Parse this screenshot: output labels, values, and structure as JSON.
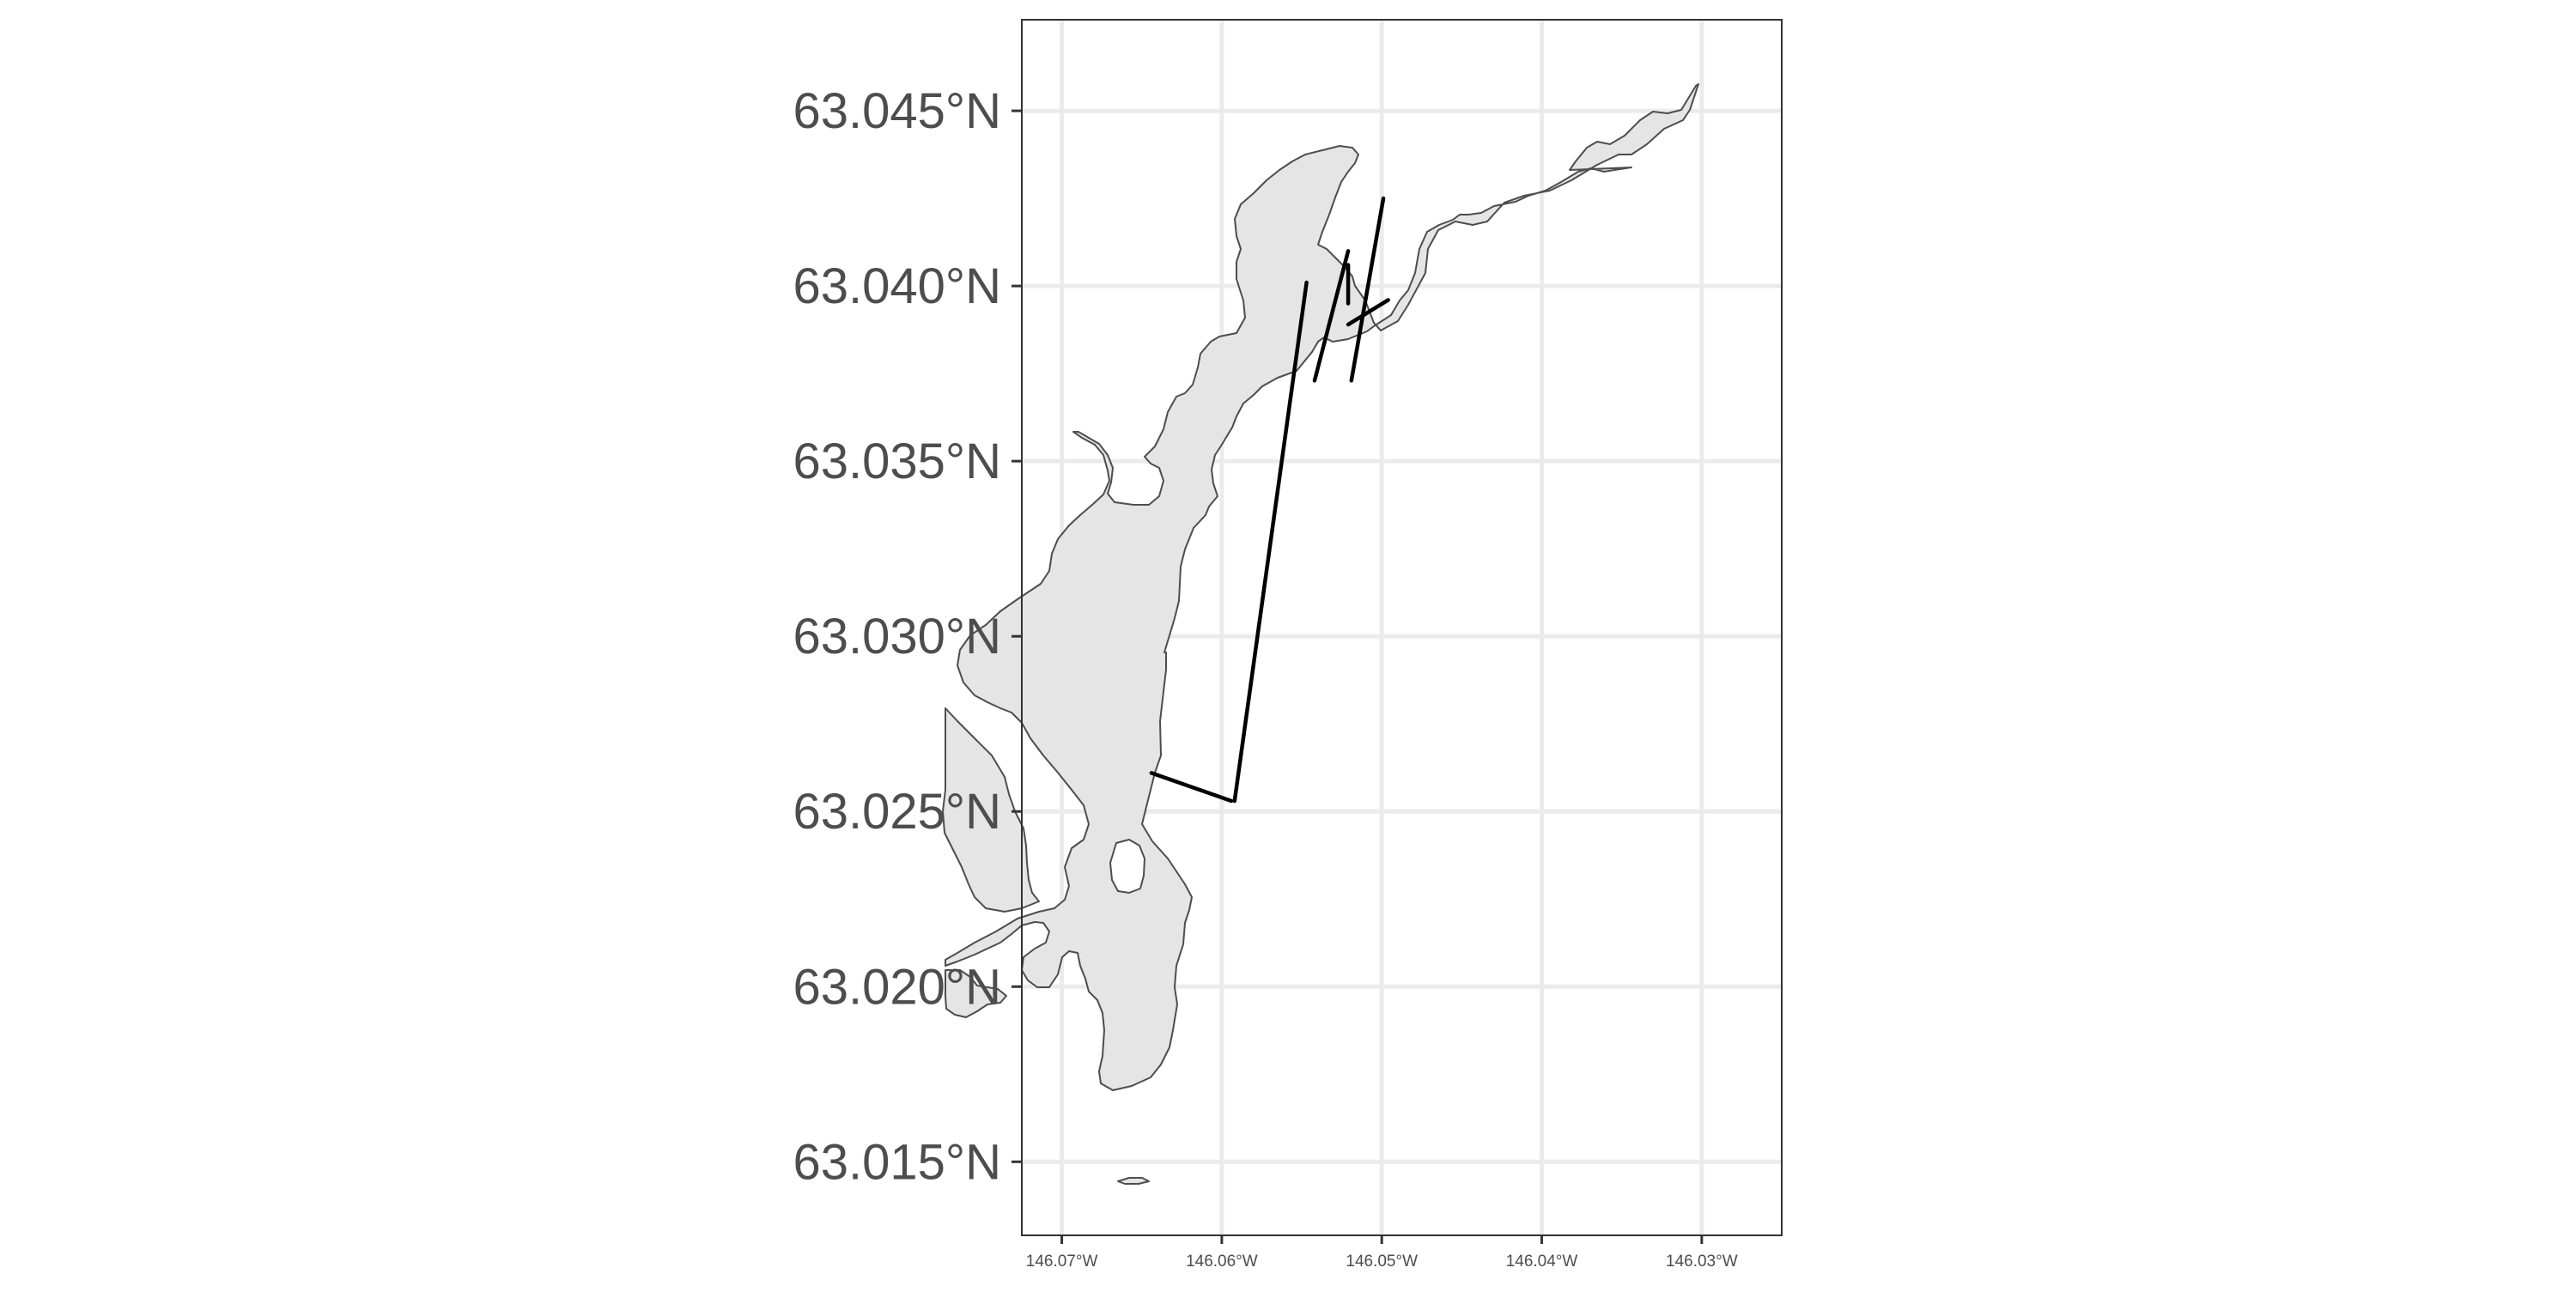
{
  "map": {
    "y_axis": {
      "ticks": [
        {
          "value": 63.045,
          "label": "63.045°N"
        },
        {
          "value": 63.04,
          "label": "63.040°N"
        },
        {
          "value": 63.035,
          "label": "63.035°N"
        },
        {
          "value": 63.03,
          "label": "63.030°N"
        },
        {
          "value": 63.025,
          "label": "63.025°N"
        },
        {
          "value": 63.02,
          "label": "63.020°N"
        },
        {
          "value": 63.015,
          "label": "63.015°N"
        }
      ],
      "range": [
        63.0129,
        63.0476
      ]
    },
    "x_axis": {
      "ticks": [
        {
          "value": -146.07,
          "label": "146.07°W"
        },
        {
          "value": -146.06,
          "label": "146.06°W"
        },
        {
          "value": -146.05,
          "label": "146.05°W"
        },
        {
          "value": -146.04,
          "label": "146.04°W"
        },
        {
          "value": -146.03,
          "label": "146.03°W"
        }
      ],
      "range": [
        -146.0725,
        -146.025
      ]
    },
    "colors": {
      "lake_fill": "#e5e5e5",
      "lake_outline": "#4d4d4d",
      "transect": "#000000",
      "grid": "#ebebeb",
      "background": "#ffffff"
    },
    "transects": [
      {
        "from": [
          -146.0644,
          63.0261
        ],
        "to": [
          -146.0594,
          63.0253
        ]
      },
      {
        "from": [
          -146.0592,
          63.0253
        ],
        "to": [
          -146.0547,
          63.0401
        ]
      },
      {
        "from": [
          -146.0542,
          63.0373
        ],
        "to": [
          -146.0521,
          63.041
        ]
      },
      {
        "from": [
          -146.0521,
          63.0406
        ],
        "to": [
          -146.0521,
          63.0395
        ]
      },
      {
        "from": [
          -146.0521,
          63.0389
        ],
        "to": [
          -146.0496,
          63.0396
        ]
      },
      {
        "from": [
          -146.0519,
          63.0373
        ],
        "to": [
          -146.0499,
          63.0425
        ]
      }
    ]
  }
}
